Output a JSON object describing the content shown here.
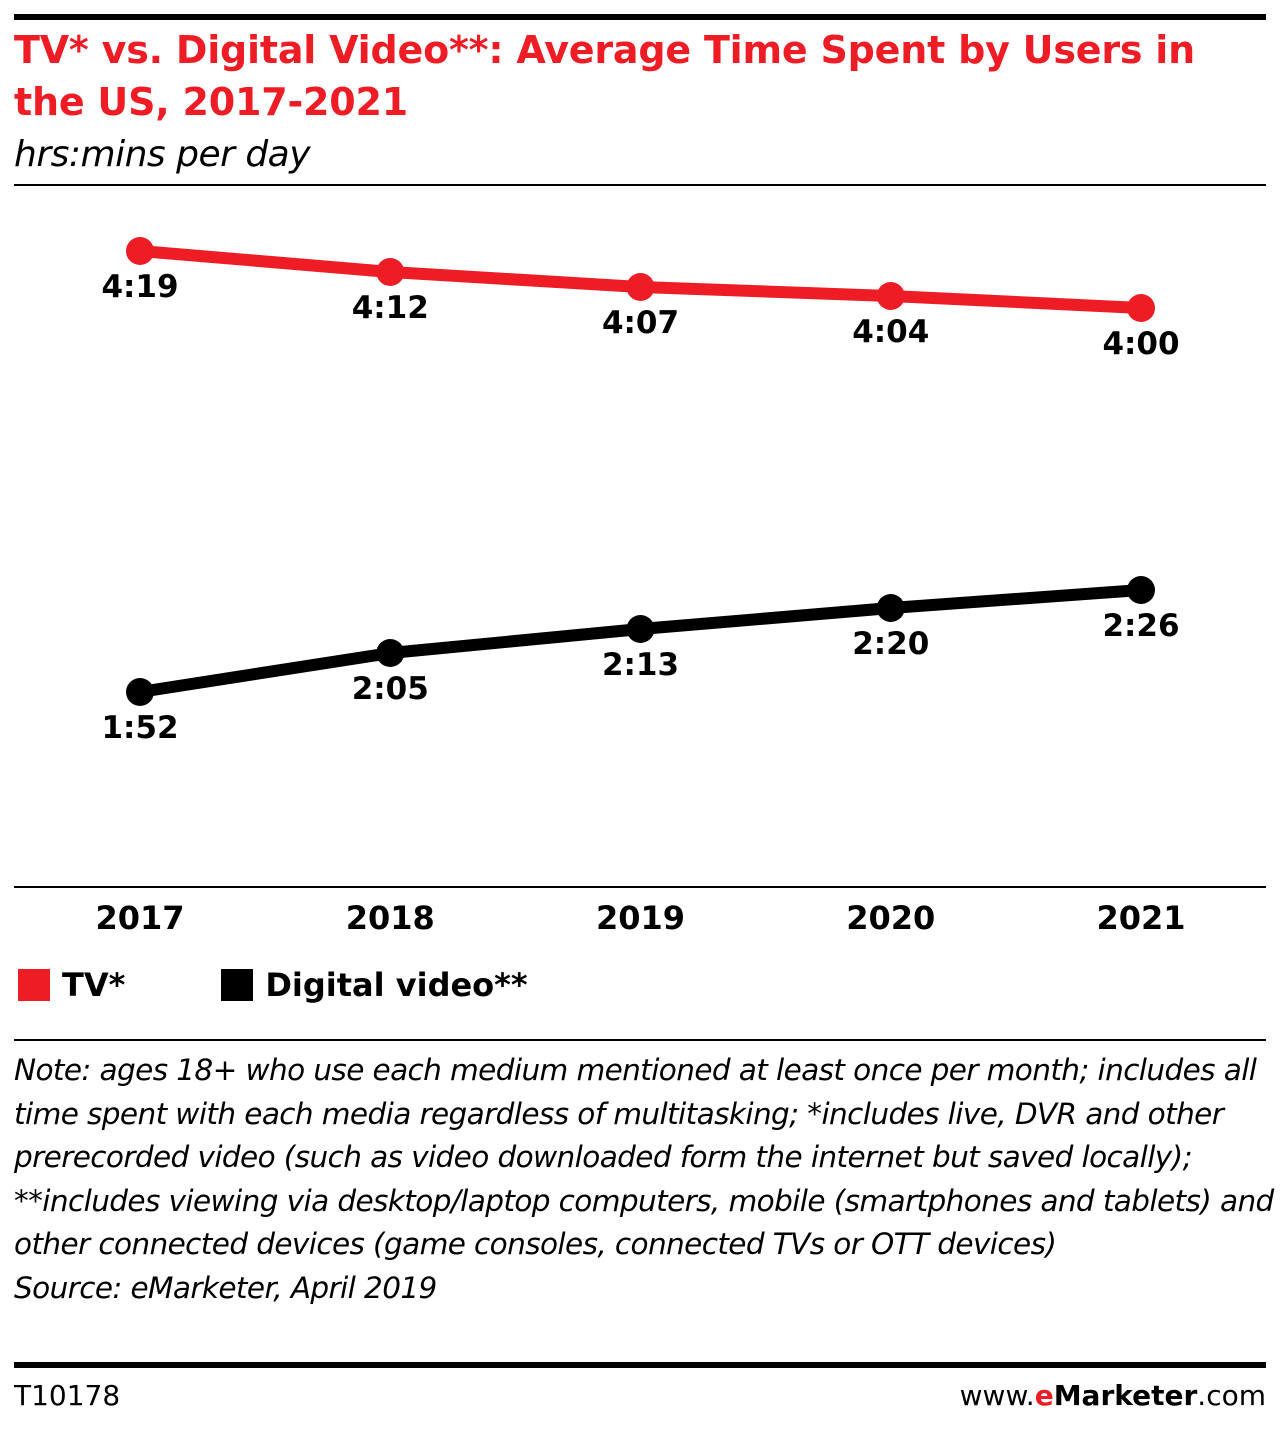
{
  "header": {
    "title": "TV* vs. Digital Video**: Average Time Spent by Users in the US, 2017-2021",
    "subtitle": "hrs:mins per day"
  },
  "chart_data": {
    "type": "line",
    "title": "TV* vs. Digital Video**: Average Time Spent by Users in the US, 2017-2021",
    "subtitle": "hrs:mins per day",
    "x": [
      "2017",
      "2018",
      "2019",
      "2020",
      "2021"
    ],
    "unit": "minutes per day",
    "series": [
      {
        "name": "TV*",
        "color": "#ee1c25",
        "values": [
          259,
          252,
          247,
          244,
          240
        ],
        "labels": [
          "4:19",
          "4:12",
          "4:07",
          "4:04",
          "4:00"
        ]
      },
      {
        "name": "Digital video**",
        "color": "#000000",
        "values": [
          112,
          125,
          133,
          140,
          146
        ],
        "labels": [
          "1:52",
          "2:05",
          "2:13",
          "2:20",
          "2:26"
        ]
      }
    ],
    "ylim": [
      50,
      275
    ],
    "grid": false,
    "y_axis_shown": false,
    "legend_position": "bottom-left"
  },
  "legend": [
    {
      "label": "TV*",
      "color": "#ee1c25"
    },
    {
      "label": "Digital video**",
      "color": "#000000"
    }
  ],
  "footer": {
    "notes": [
      "Note: ages 18+ who use each medium mentioned at least once per month; includes all time spent with each media regardless of multitasking; *includes live, DVR and other prerecorded video (such as video downloaded form the internet but saved locally); **includes viewing via desktop/laptop computers, mobile (smartphones and tablets) and other connected devices (game consoles, connected TVs or OTT devices)",
      "Source: eMarketer, April 2019"
    ],
    "chart_id": "T10178",
    "brand": {
      "prefix": "www.",
      "e": "e",
      "marketer": "Marketer",
      "suffix": ".com"
    }
  }
}
